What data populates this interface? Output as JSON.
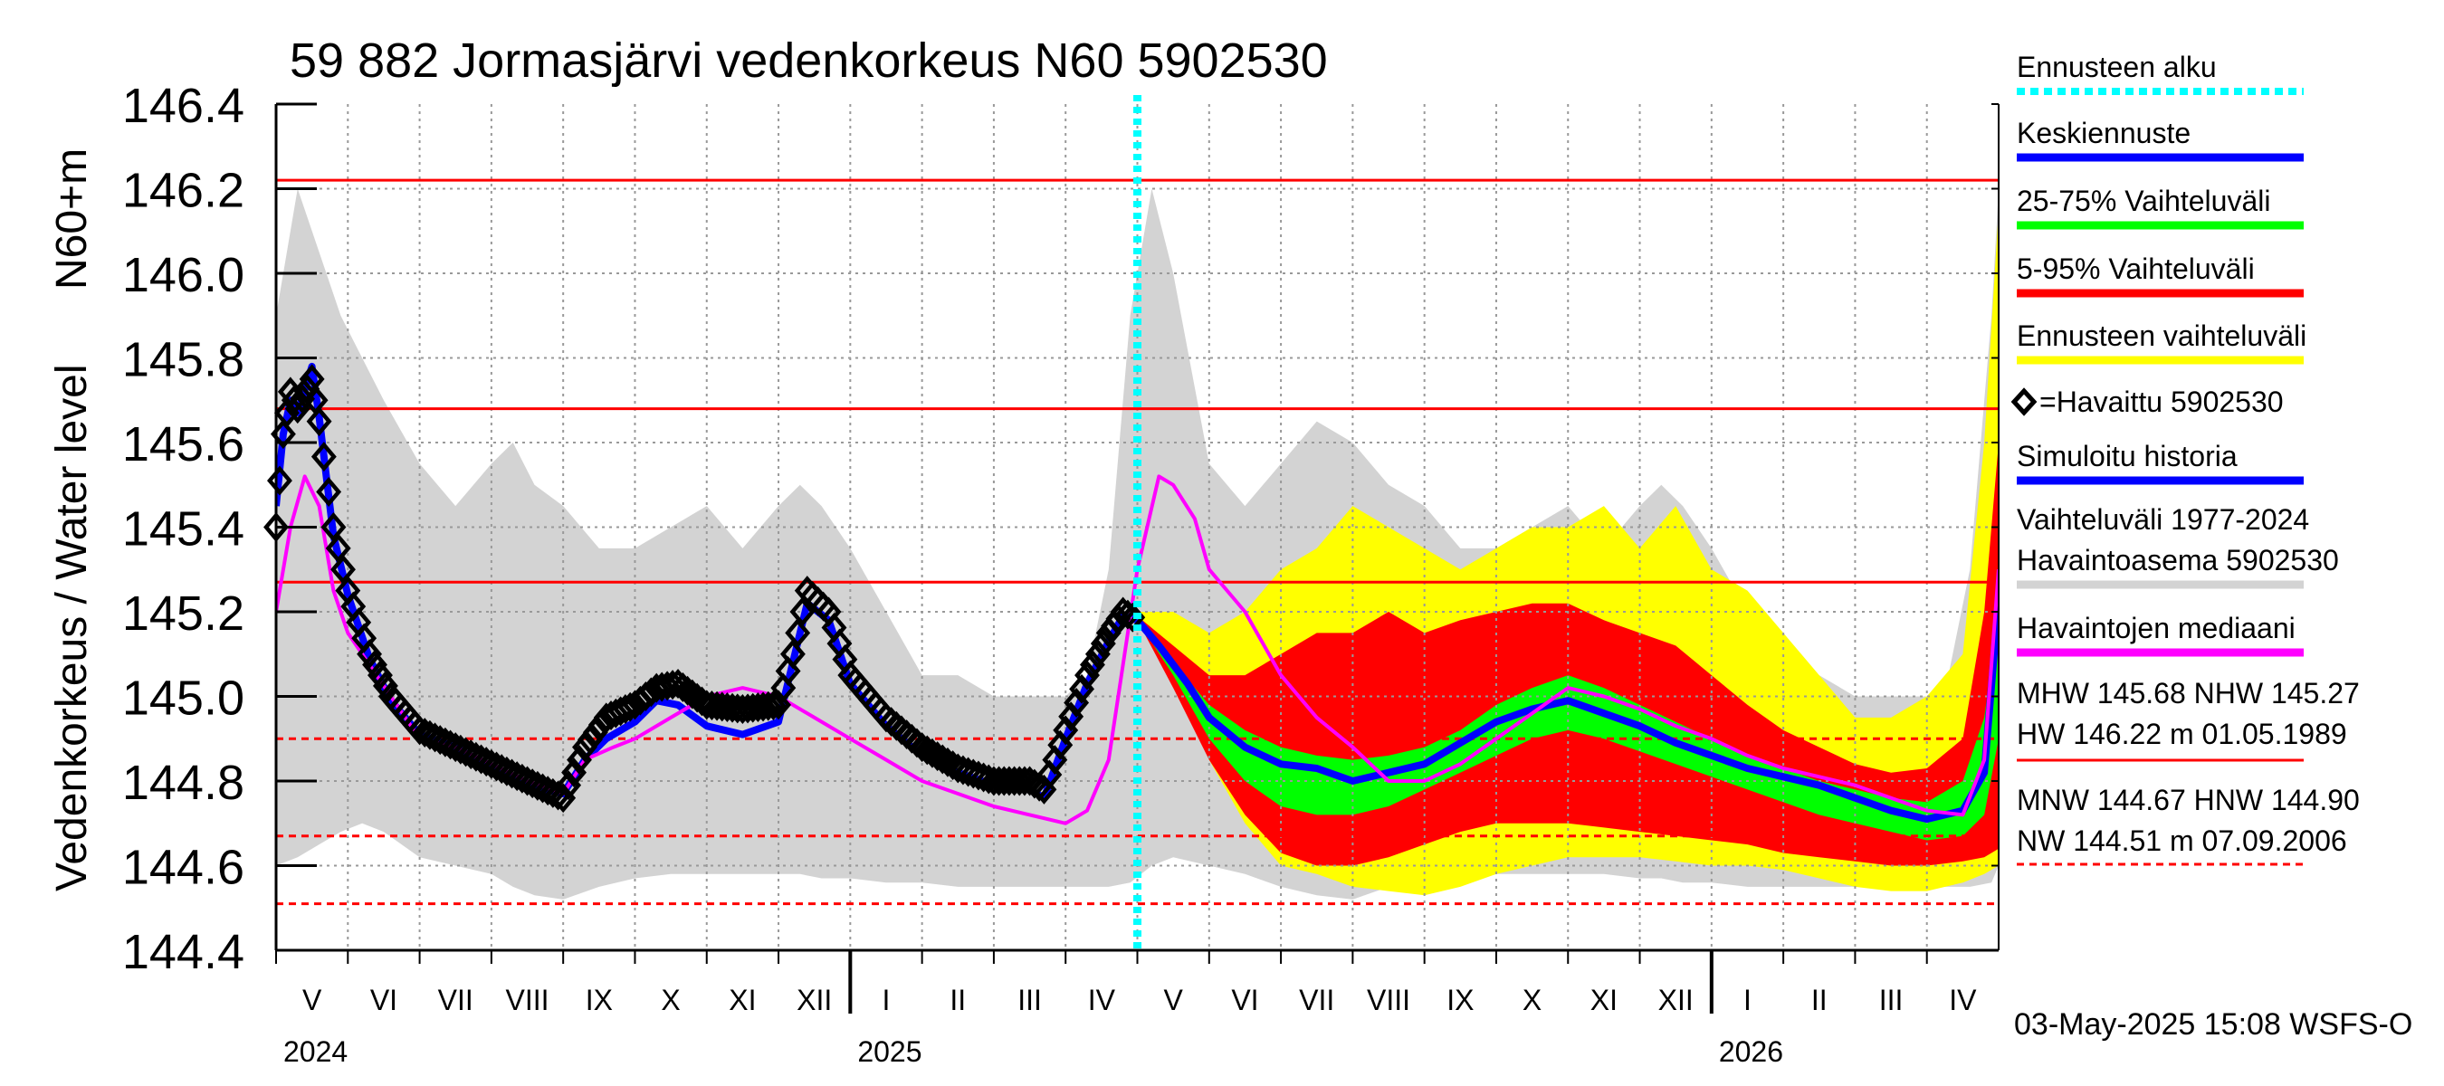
{
  "chart_data": {
    "type": "line",
    "title": "59 882 Jormasjärvi vedenkorkeus N60 5902530",
    "ylabel_top": "N60+m",
    "ylabel_bottom": "Vedenkorkeus / Water level",
    "ylim": [
      144.4,
      146.4
    ],
    "yticks": [
      "146.4",
      "146.2",
      "146.0",
      "145.8",
      "145.6",
      "145.4",
      "145.2",
      "145.0",
      "144.8",
      "144.6",
      "144.4"
    ],
    "x_range_months": [
      0,
      24
    ],
    "months": [
      {
        "label": "V",
        "start": 0
      },
      {
        "label": "VI",
        "start": 1
      },
      {
        "label": "VII",
        "start": 2
      },
      {
        "label": "VIII",
        "start": 3
      },
      {
        "label": "IX",
        "start": 4
      },
      {
        "label": "X",
        "start": 5
      },
      {
        "label": "XI",
        "start": 6
      },
      {
        "label": "XII",
        "start": 7
      },
      {
        "label": "I",
        "start": 8
      },
      {
        "label": "II",
        "start": 9
      },
      {
        "label": "III",
        "start": 10
      },
      {
        "label": "IV",
        "start": 11
      },
      {
        "label": "V",
        "start": 12
      },
      {
        "label": "VI",
        "start": 13
      },
      {
        "label": "VII",
        "start": 14
      },
      {
        "label": "VIII",
        "start": 15
      },
      {
        "label": "IX",
        "start": 16
      },
      {
        "label": "X",
        "start": 17
      },
      {
        "label": "XI",
        "start": 18
      },
      {
        "label": "XII",
        "start": 19
      },
      {
        "label": "I",
        "start": 20
      },
      {
        "label": "II",
        "start": 21
      },
      {
        "label": "III",
        "start": 22
      },
      {
        "label": "IV",
        "start": 23
      }
    ],
    "years": [
      {
        "label": "2024",
        "at": 0,
        "tick": null
      },
      {
        "label": "2025",
        "at": 8,
        "tick": 8
      },
      {
        "label": "2026",
        "at": 20,
        "tick": 20
      }
    ],
    "forecast_start": 12.0,
    "reference_lines": [
      {
        "name": "HW",
        "value": 146.22,
        "style": "solid"
      },
      {
        "name": "MHW",
        "value": 145.68,
        "style": "solid"
      },
      {
        "name": "NHW",
        "value": 145.27,
        "style": "solid"
      },
      {
        "name": "HNW",
        "value": 144.9,
        "style": "dashed"
      },
      {
        "name": "MNW",
        "value": 144.67,
        "style": "dashed"
      },
      {
        "name": "NW",
        "value": 144.51,
        "style": "dashed"
      }
    ],
    "series": {
      "range_1977_2024": {
        "x": [
          0,
          0.3,
          0.6,
          0.9,
          1.2,
          1.5,
          2,
          2.5,
          3,
          3.3,
          3.6,
          4,
          4.5,
          5,
          5.5,
          6,
          6.5,
          7,
          7.3,
          7.6,
          8,
          8.5,
          9,
          9.5,
          10,
          10.5,
          11,
          11.3,
          11.6,
          11.9,
          12.2,
          12.5,
          13,
          13.5,
          14,
          14.5,
          15,
          15.5,
          16,
          16.5,
          17,
          17.5,
          18,
          18.5,
          19,
          19.3,
          19.6,
          20,
          20.5,
          21,
          21.5,
          22,
          22.5,
          23,
          23.3,
          23.6,
          23.9,
          24
        ],
        "upper": [
          145.9,
          146.2,
          146.05,
          145.9,
          145.8,
          145.7,
          145.55,
          145.45,
          145.55,
          145.6,
          145.5,
          145.45,
          145.35,
          145.35,
          145.4,
          145.45,
          145.35,
          145.45,
          145.5,
          145.45,
          145.35,
          145.2,
          145.05,
          145.05,
          145.0,
          145.0,
          145.0,
          145.05,
          145.3,
          145.9,
          146.2,
          146.0,
          145.55,
          145.45,
          145.55,
          145.65,
          145.6,
          145.5,
          145.45,
          145.35,
          145.35,
          145.4,
          145.45,
          145.35,
          145.45,
          145.5,
          145.45,
          145.35,
          145.2,
          145.05,
          145.05,
          145.0,
          145.0,
          145.0,
          145.05,
          145.3,
          145.9,
          146.2
        ],
        "lower": [
          144.6,
          144.62,
          144.65,
          144.68,
          144.7,
          144.68,
          144.62,
          144.6,
          144.58,
          144.55,
          144.53,
          144.52,
          144.55,
          144.57,
          144.58,
          144.58,
          144.58,
          144.58,
          144.58,
          144.57,
          144.57,
          144.56,
          144.56,
          144.55,
          144.55,
          144.55,
          144.55,
          144.55,
          144.55,
          144.56,
          144.6,
          144.62,
          144.6,
          144.58,
          144.55,
          144.53,
          144.52,
          144.55,
          144.57,
          144.58,
          144.58,
          144.58,
          144.58,
          144.58,
          144.57,
          144.57,
          144.56,
          144.56,
          144.55,
          144.55,
          144.55,
          144.55,
          144.55,
          144.55,
          144.55,
          144.55,
          144.56,
          144.6
        ]
      },
      "ensemble_envelope": {
        "x": [
          12,
          12.5,
          13,
          13.5,
          14,
          14.5,
          15,
          15.5,
          16,
          16.5,
          17,
          17.5,
          18,
          18.5,
          19,
          19.5,
          20,
          20.5,
          21,
          21.5,
          22,
          22.5,
          23,
          23.5,
          23.8,
          24
        ],
        "upper": [
          145.2,
          145.2,
          145.15,
          145.2,
          145.3,
          145.35,
          145.45,
          145.4,
          145.35,
          145.3,
          145.35,
          145.4,
          145.4,
          145.45,
          145.35,
          145.45,
          145.3,
          145.25,
          145.15,
          145.05,
          144.95,
          144.95,
          145.0,
          145.1,
          145.6,
          146.15
        ],
        "lower": [
          145.18,
          145.05,
          144.85,
          144.7,
          144.6,
          144.58,
          144.55,
          144.54,
          144.53,
          144.55,
          144.58,
          144.6,
          144.62,
          144.62,
          144.62,
          144.61,
          144.6,
          144.6,
          144.59,
          144.57,
          144.55,
          144.54,
          144.54,
          144.56,
          144.58,
          144.6
        ]
      },
      "band_5_95": {
        "x": [
          12,
          12.5,
          13,
          13.5,
          14,
          14.5,
          15,
          15.5,
          16,
          16.5,
          17,
          17.5,
          18,
          18.5,
          19,
          19.5,
          20,
          20.5,
          21,
          21.5,
          22,
          22.5,
          23,
          23.5,
          23.8,
          24
        ],
        "upper": [
          145.19,
          145.12,
          145.05,
          145.05,
          145.1,
          145.15,
          145.15,
          145.2,
          145.15,
          145.18,
          145.2,
          145.22,
          145.22,
          145.18,
          145.15,
          145.12,
          145.05,
          144.98,
          144.92,
          144.88,
          144.84,
          144.82,
          144.83,
          144.9,
          145.2,
          145.6
        ],
        "lower": [
          145.18,
          145.02,
          144.85,
          144.72,
          144.63,
          144.6,
          144.6,
          144.62,
          144.65,
          144.68,
          144.7,
          144.7,
          144.7,
          144.69,
          144.68,
          144.67,
          144.66,
          144.65,
          144.63,
          144.62,
          144.61,
          144.6,
          144.6,
          144.61,
          144.62,
          144.64
        ]
      },
      "band_25_75": {
        "x": [
          12,
          12.5,
          13,
          13.5,
          14,
          14.5,
          15,
          15.5,
          16,
          16.5,
          17,
          17.5,
          18,
          18.5,
          19,
          19.5,
          20,
          20.5,
          21,
          21.5,
          22,
          22.5,
          23,
          23.5,
          23.8,
          24
        ],
        "upper": [
          145.18,
          145.08,
          144.98,
          144.92,
          144.88,
          144.86,
          144.85,
          144.86,
          144.88,
          144.92,
          144.98,
          145.02,
          145.05,
          145.02,
          144.98,
          144.94,
          144.9,
          144.86,
          144.83,
          144.8,
          144.78,
          144.76,
          144.75,
          144.8,
          144.95,
          145.2
        ],
        "lower": [
          145.18,
          145.05,
          144.9,
          144.8,
          144.74,
          144.72,
          144.72,
          144.74,
          144.78,
          144.82,
          144.86,
          144.9,
          144.92,
          144.9,
          144.87,
          144.84,
          144.81,
          144.78,
          144.75,
          144.72,
          144.7,
          144.68,
          144.66,
          144.67,
          144.72,
          144.9
        ]
      },
      "mean_forecast": {
        "x": [
          12,
          12.3,
          12.7,
          13,
          13.5,
          14,
          14.5,
          15,
          15.5,
          16,
          16.5,
          17,
          17.5,
          18,
          18.5,
          19,
          19.5,
          20,
          20.5,
          21,
          21.5,
          22,
          22.5,
          23,
          23.5,
          23.8,
          24
        ],
        "values": [
          145.18,
          145.12,
          145.03,
          144.95,
          144.88,
          144.84,
          144.83,
          144.8,
          144.82,
          144.84,
          144.89,
          144.94,
          144.97,
          144.99,
          144.96,
          144.93,
          144.89,
          144.86,
          144.83,
          144.81,
          144.79,
          144.76,
          144.73,
          144.71,
          144.73,
          144.82,
          145.23
        ]
      },
      "observed": {
        "x": [
          0,
          0.1,
          0.2,
          0.3,
          0.5,
          0.6,
          0.8,
          1.0,
          1.3,
          1.6,
          2.0,
          2.5,
          3.0,
          3.5,
          4.0,
          4.3,
          4.6,
          5.0,
          5.3,
          5.6,
          6.0,
          6.5,
          7.0,
          7.2,
          7.4,
          7.7,
          8.0,
          8.5,
          9.0,
          9.5,
          10.0,
          10.5,
          10.7,
          11.0,
          11.3,
          11.6,
          11.8,
          12.0
        ],
        "values": [
          145.4,
          145.62,
          145.72,
          145.68,
          145.75,
          145.65,
          145.4,
          145.25,
          145.1,
          145.0,
          144.92,
          144.88,
          144.84,
          144.8,
          144.76,
          144.88,
          144.95,
          144.98,
          145.02,
          145.03,
          144.98,
          144.97,
          144.98,
          145.1,
          145.25,
          145.2,
          145.05,
          144.95,
          144.88,
          144.83,
          144.8,
          144.8,
          144.78,
          144.92,
          145.05,
          145.15,
          145.2,
          145.18
        ]
      },
      "simulated": {
        "x": [
          0,
          0.1,
          0.2,
          0.3,
          0.5,
          0.6,
          0.8,
          1.0,
          1.3,
          1.6,
          2.0,
          2.5,
          3.0,
          3.5,
          4.0,
          4.3,
          4.6,
          5.0,
          5.3,
          5.6,
          6.0,
          6.5,
          7.0,
          7.2,
          7.4,
          7.7,
          8.0,
          8.5,
          9.0,
          9.5,
          10.0,
          10.5,
          10.7,
          11.0,
          11.3,
          11.6,
          11.8,
          12.0
        ],
        "values": [
          145.45,
          145.62,
          145.7,
          145.67,
          145.78,
          145.66,
          145.38,
          145.24,
          145.09,
          144.99,
          144.91,
          144.88,
          144.83,
          144.79,
          144.77,
          144.85,
          144.9,
          144.94,
          144.99,
          144.98,
          144.93,
          144.91,
          144.94,
          145.08,
          145.22,
          145.18,
          145.03,
          144.93,
          144.86,
          144.82,
          144.79,
          144.78,
          144.76,
          144.9,
          145.03,
          145.13,
          145.19,
          145.18
        ]
      },
      "median_history": {
        "x": [
          0,
          0.2,
          0.4,
          0.6,
          0.8,
          1.0,
          1.4,
          2.0,
          2.5,
          3.0,
          3.5,
          4.0,
          4.3,
          4.7,
          5.0,
          5.5,
          6.0,
          6.5,
          7.0,
          7.5,
          8.0,
          8.5,
          9.0,
          9.5,
          10.0,
          10.5,
          11.0,
          11.3,
          11.6,
          12.0,
          12.3,
          12.5,
          12.8,
          13.0,
          13.5,
          14.0,
          14.5,
          15.0,
          15.5,
          16.0,
          16.5,
          17.0,
          17.5,
          18.0,
          18.5,
          19.0,
          19.5,
          20.0,
          20.5,
          21.0,
          21.5,
          22.0,
          22.5,
          23.0,
          23.5,
          23.8,
          24.0
        ],
        "values": [
          145.2,
          145.4,
          145.52,
          145.45,
          145.25,
          145.15,
          145.05,
          144.9,
          144.88,
          144.84,
          144.8,
          144.77,
          144.85,
          144.88,
          144.9,
          144.95,
          145.0,
          145.02,
          145.0,
          144.95,
          144.9,
          144.85,
          144.8,
          144.77,
          144.74,
          144.72,
          144.7,
          144.73,
          144.85,
          145.3,
          145.52,
          145.5,
          145.42,
          145.3,
          145.2,
          145.05,
          144.95,
          144.88,
          144.8,
          144.8,
          144.84,
          144.9,
          144.96,
          145.02,
          145.0,
          144.97,
          144.93,
          144.9,
          144.86,
          144.83,
          144.81,
          144.79,
          144.76,
          144.73,
          144.72,
          144.85,
          145.3
        ]
      }
    },
    "legend": [
      {
        "label": "Ennusteen alku",
        "color": "#00ffff",
        "kind": "dotted"
      },
      {
        "label": "Keskiennuste",
        "color": "#0000ff",
        "kind": "line"
      },
      {
        "label": "25-75% Vaihteluväli",
        "color": "#00ff00",
        "kind": "line"
      },
      {
        "label": "5-95% Vaihteluväli",
        "color": "#ff0000",
        "kind": "line"
      },
      {
        "label": "Ennusteen vaihteluväli",
        "color": "#ffff00",
        "kind": "line"
      },
      {
        "label": "=Havaittu 5902530",
        "color": "#000000",
        "kind": "marker"
      },
      {
        "label": "Simuloitu historia",
        "color": "#0000ff",
        "kind": "line"
      },
      {
        "label": "Vaihteluväli 1977-2024",
        "color": "#d3d3d3",
        "kind": "text"
      },
      {
        "label": " Havaintoasema 5902530",
        "color": "#d3d3d3",
        "kind": "line"
      },
      {
        "label": "Havaintojen mediaani",
        "color": "#ff00ff",
        "kind": "line"
      }
    ],
    "stats": {
      "line1": "MHW 145.68 NHW 145.27",
      "line2": "HW 146.22 m 01.05.1989",
      "line3": "MNW 144.67 HNW 144.90",
      "line4": "NW 144.51 m 07.09.2006"
    },
    "footer": "03-May-2025 15:08 WSFS-O",
    "colors": {
      "gray": "#d3d3d3",
      "yellow": "#ffff00",
      "red": "#ff0000",
      "green": "#00ff00",
      "blue": "#0000ff",
      "magenta": "#ff00ff",
      "cyan": "#00ffff",
      "grid": "#999999"
    }
  }
}
